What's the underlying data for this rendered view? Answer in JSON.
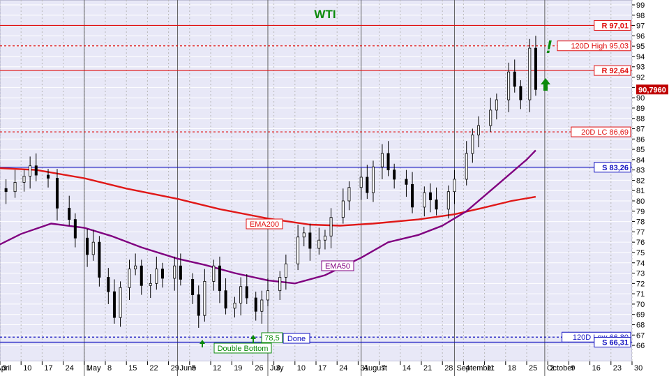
{
  "chart_data": {
    "type": "candlestick",
    "title": "WTI",
    "y_axis": {
      "min": 66,
      "max": 99,
      "position": "right",
      "ticks": [
        66,
        67,
        68,
        69,
        70,
        71,
        72,
        73,
        74,
        75,
        76,
        77,
        78,
        79,
        80,
        81,
        82,
        83,
        84,
        85,
        86,
        87,
        88,
        89,
        90,
        91,
        92,
        93,
        94,
        95,
        96,
        97,
        98,
        99
      ]
    },
    "x_axis": {
      "start": "2022-04-03",
      "end": "2022-10-30",
      "tick_dates": [
        "2022-04-03",
        "2022-04-10",
        "2022-04-17",
        "2022-04-24",
        "2022-05-01",
        "2022-05-08",
        "2022-05-15",
        "2022-05-22",
        "2022-05-29",
        "2022-06-05",
        "2022-06-12",
        "2022-06-19",
        "2022-06-26",
        "2022-07-03",
        "2022-07-10",
        "2022-07-17",
        "2022-07-24",
        "2022-07-31",
        "2022-08-07",
        "2022-08-14",
        "2022-08-21",
        "2022-08-28",
        "2022-09-04",
        "2022-09-11",
        "2022-09-18",
        "2022-09-25",
        "2022-10-02",
        "2022-10-09",
        "2022-10-16",
        "2022-10-23",
        "2022-10-30"
      ],
      "tick_labels": [
        "3",
        "10",
        "17",
        "24",
        "1",
        "8",
        "15",
        "22",
        "29",
        "5",
        "12",
        "19",
        "26",
        "3",
        "10",
        "17",
        "24",
        "31",
        "7",
        "14",
        "21",
        "28",
        "4",
        "11",
        "18",
        "25",
        "2",
        "9",
        "16",
        "23",
        "30"
      ],
      "months": [
        {
          "label": "April",
          "date": "2022-04-01"
        },
        {
          "label": "May",
          "date": "2022-05-01"
        },
        {
          "label": "June",
          "date": "2022-06-01"
        },
        {
          "label": "July",
          "date": "2022-07-01"
        },
        {
          "label": "August",
          "date": "2022-08-01"
        },
        {
          "label": "September",
          "date": "2022-09-01"
        },
        {
          "label": "October",
          "date": "2022-10-01"
        }
      ]
    },
    "grid": true,
    "current_price": "90,7960",
    "levels": [
      {
        "label": "R 97,01",
        "value": 97.01,
        "style": "solid",
        "color": "#e01010"
      },
      {
        "label": "120D High 95,03",
        "value": 95.03,
        "style": "dashed",
        "color": "#e01010"
      },
      {
        "label": "R 92,64",
        "value": 92.64,
        "style": "solid",
        "color": "#e01010"
      },
      {
        "label": "20D LC 86,69",
        "value": 86.69,
        "style": "dashed",
        "color": "#e01010"
      },
      {
        "label": "S 83,26",
        "value": 83.26,
        "style": "solid",
        "color": "#1010c0"
      },
      {
        "label": "120D Low 66,80",
        "value": 66.8,
        "style": "dashed",
        "color": "#1010c0"
      },
      {
        "label": "S 66,31",
        "value": 66.31,
        "style": "solid",
        "color": "#1010c0"
      }
    ],
    "series": [
      {
        "name": "EMA200",
        "color": "#e01818",
        "points": [
          [
            "2022-04-01",
            83.2
          ],
          [
            "2022-04-15",
            83.0
          ],
          [
            "2022-05-01",
            82.2
          ],
          [
            "2022-05-15",
            81.2
          ],
          [
            "2022-06-01",
            80.2
          ],
          [
            "2022-06-15",
            79.2
          ],
          [
            "2022-07-01",
            78.3
          ],
          [
            "2022-07-15",
            77.7
          ],
          [
            "2022-07-25",
            77.6
          ],
          [
            "2022-08-05",
            77.8
          ],
          [
            "2022-08-20",
            78.2
          ],
          [
            "2022-09-01",
            78.7
          ],
          [
            "2022-09-10",
            79.3
          ],
          [
            "2022-09-20",
            80.0
          ],
          [
            "2022-09-28",
            80.4
          ]
        ]
      },
      {
        "name": "EMA50",
        "color": "#800080",
        "points": [
          [
            "2022-04-01",
            75.5
          ],
          [
            "2022-04-10",
            76.8
          ],
          [
            "2022-04-20",
            77.8
          ],
          [
            "2022-05-01",
            77.4
          ],
          [
            "2022-05-10",
            76.6
          ],
          [
            "2022-05-20",
            75.5
          ],
          [
            "2022-06-01",
            74.4
          ],
          [
            "2022-06-10",
            73.8
          ],
          [
            "2022-06-20",
            73.0
          ],
          [
            "2022-07-01",
            72.3
          ],
          [
            "2022-07-10",
            72.0
          ],
          [
            "2022-07-20",
            72.8
          ],
          [
            "2022-08-01",
            74.5
          ],
          [
            "2022-08-10",
            76.0
          ],
          [
            "2022-08-20",
            76.7
          ],
          [
            "2022-08-28",
            77.6
          ],
          [
            "2022-09-05",
            79.0
          ],
          [
            "2022-09-15",
            81.5
          ],
          [
            "2022-09-25",
            84.0
          ],
          [
            "2022-09-28",
            84.9
          ]
        ]
      }
    ],
    "closes": [
      [
        "2022-04-01",
        81.2
      ],
      [
        "2022-04-05",
        80.9
      ],
      [
        "2022-04-08",
        81.8
      ],
      [
        "2022-04-11",
        82.4
      ],
      [
        "2022-04-13",
        83.4
      ],
      [
        "2022-04-15",
        82.5
      ],
      [
        "2022-04-19",
        82.2
      ],
      [
        "2022-04-22",
        79.3
      ],
      [
        "2022-04-26",
        78.2
      ],
      [
        "2022-04-28",
        76.4
      ],
      [
        "2022-05-02",
        74.8
      ],
      [
        "2022-05-04",
        76.0
      ],
      [
        "2022-05-06",
        72.6
      ],
      [
        "2022-05-09",
        71.2
      ],
      [
        "2022-05-11",
        68.7
      ],
      [
        "2022-05-13",
        71.6
      ],
      [
        "2022-05-16",
        73.4
      ],
      [
        "2022-05-18",
        73.7
      ],
      [
        "2022-05-20",
        71.8
      ],
      [
        "2022-05-23",
        72.0
      ],
      [
        "2022-05-25",
        73.4
      ],
      [
        "2022-05-27",
        72.5
      ],
      [
        "2022-05-31",
        73.7
      ],
      [
        "2022-06-02",
        72.4
      ],
      [
        "2022-06-06",
        70.9
      ],
      [
        "2022-06-08",
        68.9
      ],
      [
        "2022-06-10",
        72.2
      ],
      [
        "2022-06-13",
        73.7
      ],
      [
        "2022-06-15",
        71.3
      ],
      [
        "2022-06-17",
        69.6
      ],
      [
        "2022-06-20",
        70.1
      ],
      [
        "2022-06-22",
        71.7
      ],
      [
        "2022-06-24",
        70.6
      ],
      [
        "2022-06-27",
        69.3
      ],
      [
        "2022-06-29",
        70.4
      ],
      [
        "2022-07-01",
        71.3
      ],
      [
        "2022-07-05",
        72.6
      ],
      [
        "2022-07-07",
        73.9
      ],
      [
        "2022-07-11",
        76.5
      ],
      [
        "2022-07-13",
        76.9
      ],
      [
        "2022-07-15",
        75.4
      ],
      [
        "2022-07-18",
        76.2
      ],
      [
        "2022-07-20",
        76.6
      ],
      [
        "2022-07-22",
        78.4
      ],
      [
        "2022-07-26",
        80.0
      ],
      [
        "2022-07-28",
        81.3
      ],
      [
        "2022-08-01",
        82.3
      ],
      [
        "2022-08-03",
        80.8
      ],
      [
        "2022-08-05",
        83.3
      ],
      [
        "2022-08-08",
        84.6
      ],
      [
        "2022-08-10",
        83.0
      ],
      [
        "2022-08-12",
        82.1
      ],
      [
        "2022-08-16",
        81.6
      ],
      [
        "2022-08-18",
        79.4
      ],
      [
        "2022-08-22",
        80.8
      ],
      [
        "2022-08-24",
        80.1
      ],
      [
        "2022-08-26",
        79.2
      ],
      [
        "2022-08-30",
        80.9
      ],
      [
        "2022-09-01",
        82.1
      ],
      [
        "2022-09-05",
        84.6
      ],
      [
        "2022-09-07",
        86.4
      ],
      [
        "2022-09-09",
        87.3
      ],
      [
        "2022-09-13",
        88.8
      ],
      [
        "2022-09-15",
        89.8
      ],
      [
        "2022-09-19",
        92.5
      ],
      [
        "2022-09-21",
        91.1
      ],
      [
        "2022-09-23",
        89.8
      ],
      [
        "2022-09-26",
        94.8
      ],
      [
        "2022-09-28",
        90.8
      ]
    ]
  },
  "annotations": {
    "ema200_label": "EMA200",
    "ema50_label": "EMA50",
    "double_bottom_label": "Double Bottom",
    "target_label": "78,5",
    "done_label": "Done",
    "exclamation": "!"
  }
}
